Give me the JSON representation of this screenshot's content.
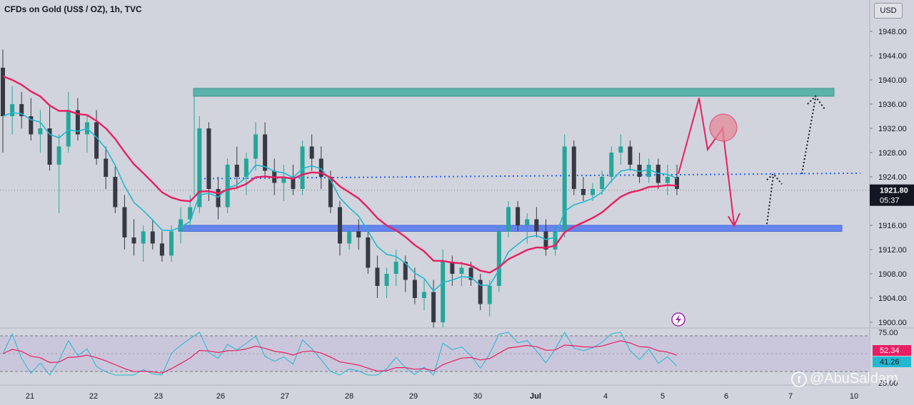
{
  "header": {
    "title": "CFDs on Gold (US$ / OZ), 1h, TVC",
    "currency_label": "USD"
  },
  "watermark": {
    "text": "@AbuSaldam"
  },
  "chart_data": {
    "type": "candlestick",
    "price_axis": {
      "ticks": [
        1948,
        1944,
        1940,
        1936,
        1932,
        1928,
        1924,
        1916,
        1912,
        1908,
        1904,
        1900
      ],
      "tick_labels": [
        "1948.00",
        "1944.00",
        "1940.00",
        "1936.00",
        "1932.00",
        "1928.00",
        "1924.00",
        "1916.00",
        "1912.00",
        "1908.00",
        "1904.00",
        "1900.00"
      ],
      "range": [
        1899.4,
        1951.4
      ]
    },
    "time_axis": {
      "labels": [
        "21",
        "22",
        "23",
        "26",
        "27",
        "28",
        "29",
        "30",
        "Jul",
        "4",
        "5",
        "6",
        "7",
        "10"
      ],
      "bold_labels": [
        "Jul"
      ]
    },
    "last_price": {
      "value": 1921.8,
      "label": "1921.80",
      "countdown": "05:37"
    },
    "levels": {
      "resistance_zone": [
        1937.3,
        1938.6
      ],
      "support_zone": [
        1915.0,
        1916.0
      ],
      "dotted_trend": [
        [
          23.5,
          1923.7
        ],
        [
          9.5,
          1924.6
        ]
      ]
    },
    "candles_approx": [
      [
        1942,
        1945,
        1928,
        1934
      ],
      [
        1934,
        1939,
        1931,
        1936
      ],
      [
        1936,
        1938,
        1932,
        1934
      ],
      [
        1934,
        1937,
        1930,
        1931
      ],
      [
        1931,
        1935,
        1928,
        1932
      ],
      [
        1932,
        1936,
        1925,
        1926
      ],
      [
        1926,
        1931,
        1918,
        1929
      ],
      [
        1929,
        1938,
        1928,
        1935
      ],
      [
        1935,
        1937,
        1930,
        1931
      ],
      [
        1931,
        1934,
        1928,
        1933
      ],
      [
        1933,
        1935,
        1926,
        1927
      ],
      [
        1927,
        1929,
        1922,
        1924
      ],
      [
        1924,
        1926,
        1918,
        1919
      ],
      [
        1919,
        1921,
        1912,
        1914
      ],
      [
        1914,
        1917,
        1911,
        1913
      ],
      [
        1913,
        1916,
        1910,
        1915
      ],
      [
        1915,
        1917,
        1912,
        1913
      ],
      [
        1913,
        1915,
        1910,
        1911
      ],
      [
        1911,
        1916,
        1910,
        1915
      ],
      [
        1915,
        1919,
        1913,
        1917
      ],
      [
        1917,
        1921,
        1915,
        1919
      ],
      [
        1919,
        1934,
        1918,
        1932
      ],
      [
        1932,
        1933,
        1920,
        1922
      ],
      [
        1922,
        1924,
        1917,
        1919
      ],
      [
        1919,
        1927,
        1918,
        1926
      ],
      [
        1926,
        1929,
        1922,
        1924
      ],
      [
        1924,
        1928,
        1921,
        1927
      ],
      [
        1927,
        1933,
        1925,
        1931
      ],
      [
        1931,
        1933,
        1924,
        1925
      ],
      [
        1925,
        1927,
        1921,
        1923
      ],
      [
        1923,
        1926,
        1920,
        1924
      ],
      [
        1924,
        1926,
        1921,
        1922
      ],
      [
        1922,
        1930,
        1921,
        1929
      ],
      [
        1929,
        1931,
        1925,
        1927
      ],
      [
        1927,
        1929,
        1922,
        1924
      ],
      [
        1924,
        1925,
        1918,
        1919
      ],
      [
        1919,
        1920,
        1911,
        1913
      ],
      [
        1913,
        1916,
        1912,
        1915
      ],
      [
        1915,
        1917,
        1912,
        1914
      ],
      [
        1914,
        1915,
        1908,
        1909
      ],
      [
        1909,
        1911,
        1904,
        1906
      ],
      [
        1906,
        1909,
        1904,
        1908
      ],
      [
        1908,
        1912,
        1906,
        1910
      ],
      [
        1910,
        1911,
        1905,
        1907
      ],
      [
        1907,
        1909,
        1903,
        1904
      ],
      [
        1904,
        1907,
        1902,
        1905
      ],
      [
        1905,
        1907,
        1899,
        1900
      ],
      [
        1900,
        1912,
        1899,
        1910
      ],
      [
        1910,
        1911,
        1906,
        1908
      ],
      [
        1908,
        1910,
        1906,
        1909
      ],
      [
        1909,
        1910,
        1906,
        1907
      ],
      [
        1907,
        1908,
        1902,
        1903
      ],
      [
        1903,
        1907,
        1901,
        1906
      ],
      [
        1906,
        1916,
        1905,
        1915
      ],
      [
        1915,
        1920,
        1914,
        1919
      ],
      [
        1919,
        1920,
        1915,
        1916
      ],
      [
        1916,
        1918,
        1913,
        1917
      ],
      [
        1917,
        1919,
        1914,
        1915
      ],
      [
        1915,
        1917,
        1911,
        1912
      ],
      [
        1912,
        1916,
        1911,
        1915
      ],
      [
        1915,
        1931,
        1914,
        1929
      ],
      [
        1929,
        1930,
        1921,
        1922
      ],
      [
        1922,
        1924,
        1920,
        1921
      ],
      [
        1921,
        1923,
        1920,
        1922
      ],
      [
        1922,
        1925,
        1921,
        1924
      ],
      [
        1924,
        1929,
        1923,
        1928
      ],
      [
        1928,
        1931,
        1926,
        1929
      ],
      [
        1929,
        1930,
        1925,
        1926
      ],
      [
        1926,
        1928,
        1923,
        1924
      ],
      [
        1924,
        1927,
        1923,
        1926
      ],
      [
        1926,
        1927,
        1922,
        1923
      ],
      [
        1923,
        1926,
        1921,
        1924
      ],
      [
        1924,
        1926,
        1921,
        1922
      ]
    ],
    "indicators": {
      "ema_fast_color": "#22b8cf",
      "ema_slow_color": "#e91e63",
      "rsi": {
        "top_label": "75.00",
        "bottom_label": "25.00",
        "value_1": "52.34",
        "value_2": "41.26",
        "line_color": "#22b8cf",
        "signal_color": "#e91e63"
      }
    }
  },
  "colors": {
    "background": "#d1d4dc",
    "candle_up": "#26a69a",
    "candle_down": "#363a45",
    "resistance_fill": "#4fb0a5",
    "support_fill": "#5b7cf0",
    "projection": "#e91e63",
    "dotted_trend": "#2962ff"
  }
}
